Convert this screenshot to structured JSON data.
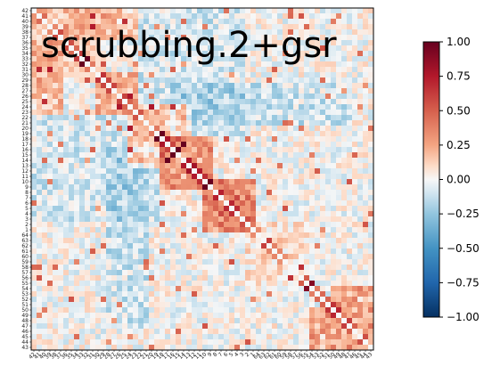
{
  "chart_data": {
    "type": "heatmap",
    "title": "scrubbing.2+gsr",
    "n_rows": 64,
    "n_cols": 64,
    "colormap": "RdBu_r",
    "vmin": -1.0,
    "vmax": 1.0,
    "colorbar_ticks": [
      "1.00",
      "0.75",
      "0.50",
      "0.25",
      "0.00",
      "−0.25",
      "−0.50",
      "−0.75",
      "−1.00"
    ],
    "colorbar_values": [
      1.0,
      0.75,
      0.5,
      0.25,
      0.0,
      -0.25,
      -0.5,
      -0.75,
      -1.0
    ],
    "row_labels": [
      "42",
      "41",
      "40",
      "39",
      "38",
      "37",
      "36",
      "35",
      "34",
      "33",
      "32",
      "31",
      "30",
      "29",
      "28",
      "27",
      "26",
      "25",
      "24",
      "23",
      "22",
      "21",
      "20",
      "19",
      "18",
      "17",
      "16",
      "15",
      "14",
      "13",
      "12",
      "11",
      "10",
      "9",
      "8",
      "7",
      "6",
      "5",
      "4",
      "3",
      "2",
      "1",
      "64",
      "63",
      "62",
      "61",
      "60",
      "59",
      "58",
      "57",
      "56",
      "55",
      "54",
      "53",
      "52",
      "51",
      "50",
      "49",
      "48",
      "47",
      "46",
      "45",
      "44",
      "43"
    ],
    "col_labels": [
      "42",
      "41",
      "40",
      "39",
      "38",
      "37",
      "36",
      "35",
      "34",
      "33",
      "32",
      "31",
      "30",
      "29",
      "28",
      "27",
      "26",
      "25",
      "24",
      "23",
      "22",
      "21",
      "20",
      "19",
      "18",
      "17",
      "16",
      "15",
      "14",
      "13",
      "12",
      "11",
      "10",
      "9",
      "8",
      "7",
      "6",
      "5",
      "4",
      "3",
      "2",
      "1",
      "64",
      "63",
      "62",
      "61",
      "60",
      "59",
      "58",
      "57",
      "56",
      "55",
      "54",
      "53",
      "52",
      "51",
      "50",
      "49",
      "48",
      "47",
      "46",
      "45",
      "44",
      "43"
    ],
    "blocks": [
      {
        "r0": 0,
        "r1": 6,
        "c0": 0,
        "c1": 20,
        "value": 0.18
      },
      {
        "r0": 6,
        "r1": 14,
        "c0": 0,
        "c1": 10,
        "value": 0.12
      },
      {
        "r0": 12,
        "r1": 18,
        "c0": 12,
        "c1": 20,
        "value": 0.22
      },
      {
        "r0": 20,
        "r1": 40,
        "c0": 0,
        "c1": 20,
        "value": -0.1
      },
      {
        "r0": 18,
        "r1": 24,
        "c0": 20,
        "c1": 30,
        "value": 0.3
      },
      {
        "r0": 24,
        "r1": 34,
        "c0": 24,
        "c1": 34,
        "value": 0.4
      },
      {
        "r0": 32,
        "r1": 40,
        "c0": 32,
        "c1": 42,
        "value": 0.42
      },
      {
        "r0": 20,
        "r1": 40,
        "c0": 20,
        "c1": 24,
        "value": -0.15
      },
      {
        "r0": 14,
        "r1": 22,
        "c0": 26,
        "c1": 60,
        "value": -0.12
      },
      {
        "r0": 56,
        "r1": 64,
        "c0": 52,
        "c1": 64,
        "value": 0.28
      },
      {
        "r0": 42,
        "r1": 52,
        "c0": 40,
        "c1": 52,
        "value": 0.1
      }
    ],
    "legend": "none",
    "grid": false
  }
}
